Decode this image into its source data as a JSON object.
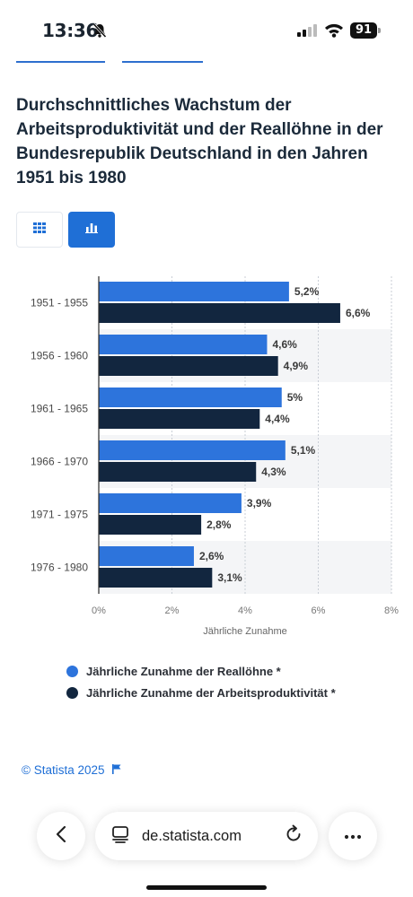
{
  "status_bar": {
    "time": "13:36",
    "battery": "91"
  },
  "title": "Durchschnittliches Wachstum der Arbeitsproduktivität und der Reallöhne in der Bundesrepublik Deutschland in den Jahren 1951 bis 1980",
  "view_toggle": {
    "table_icon": "grid-icon",
    "chart_icon": "bar-chart-icon",
    "active": "chart"
  },
  "colors": {
    "accent": "#1f6fd6",
    "series_1": "#2d74dc",
    "series_2": "#12263f"
  },
  "chart_data": {
    "type": "bar",
    "orientation": "horizontal",
    "categories": [
      "1951 - 1955",
      "1956 - 1960",
      "1961 - 1965",
      "1966 - 1970",
      "1971 - 1975",
      "1976 - 1980"
    ],
    "series": [
      {
        "name": "Jährliche Zunahme der Reallöhne *",
        "values": [
          5.2,
          4.6,
          5.0,
          5.1,
          3.9,
          2.6
        ],
        "labels": [
          "5,2%",
          "4,6%",
          "5%",
          "5,1%",
          "3,9%",
          "2,6%"
        ],
        "color": "#2d74dc"
      },
      {
        "name": "Jährliche Zunahme der Arbeitsproduktivität *",
        "values": [
          6.6,
          4.9,
          4.4,
          4.3,
          2.8,
          3.1
        ],
        "labels": [
          "6,6%",
          "4,9%",
          "4,4%",
          "4,3%",
          "2,8%",
          "3,1%"
        ],
        "color": "#12263f"
      }
    ],
    "xlim": [
      0,
      8
    ],
    "xticks": [
      0,
      2,
      4,
      6,
      8
    ],
    "xtick_labels": [
      "0%",
      "2%",
      "4%",
      "6%",
      "8%"
    ],
    "xlabel": "Jährliche Zunahme",
    "grid": true,
    "legend_position": "bottom"
  },
  "source": {
    "text": "© Statista 2025"
  },
  "browser": {
    "url": "de.statista.com"
  }
}
